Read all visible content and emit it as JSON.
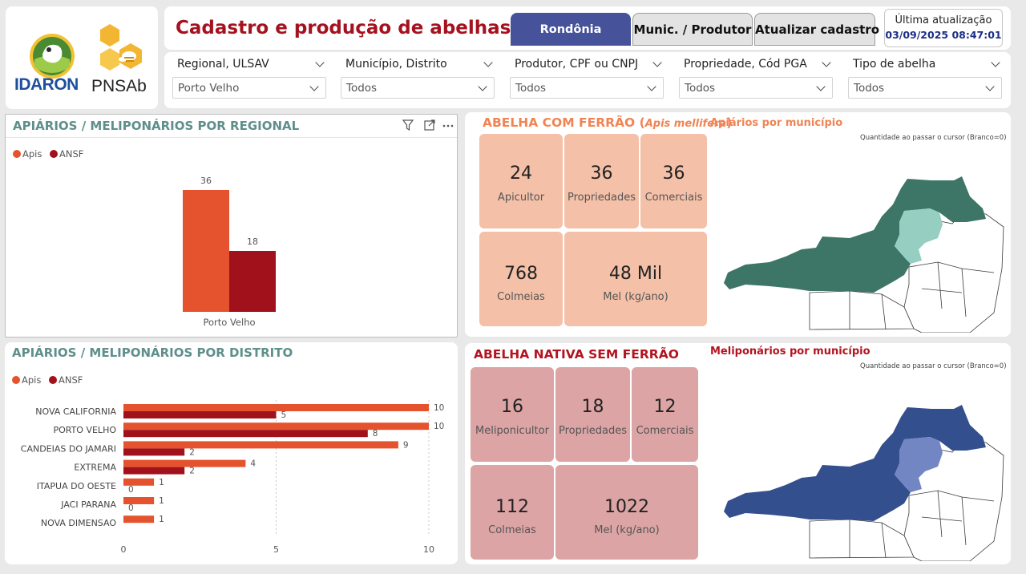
{
  "brand": {
    "logo_left": "IDARON",
    "logo_right": "PNSAb",
    "colors": {
      "idaron_blue": "#1d4f9c",
      "bee_yellow": "#f2b632",
      "green": "#4a8a32"
    }
  },
  "header": {
    "title": "Cadastro e produção de abelhas - RO",
    "tabs": [
      {
        "label": "Rondônia",
        "active": true
      },
      {
        "label": "Munic. / Produtor",
        "active": false
      },
      {
        "label": "Atualizar cadastro",
        "active": false
      }
    ],
    "update_label": "Última atualização",
    "update_value": "03/09/2025 08:47:01"
  },
  "filters": [
    {
      "label": "Regional, ULSAV",
      "value": "Porto Velho"
    },
    {
      "label": "Município, Distrito",
      "value": "Todos"
    },
    {
      "label": "Produtor, CPF ou CNPJ",
      "value": "Todos"
    },
    {
      "label": "Propriedade, Cód PGA",
      "value": "Todos"
    },
    {
      "label": "Tipo de abelha",
      "value": "Todos"
    }
  ],
  "regional_chart": {
    "title": "APIÁRIOS / MELIPONÁRIOS POR REGIONAL",
    "legend": [
      "Apis",
      "ANSF"
    ],
    "icons": [
      "filter-icon",
      "focus-mode-icon",
      "more-options-icon"
    ]
  },
  "distrito_chart": {
    "title": "APIÁRIOS / MELIPONÁRIOS POR DISTRITO",
    "legend": [
      "Apis",
      "ANSF"
    ]
  },
  "apis": {
    "header_main": "ABELHA COM FERRÃO (",
    "header_italic": "Apis mellifera",
    "header_close": ")",
    "kpis": [
      {
        "value": "24",
        "label": "Apicultor"
      },
      {
        "value": "36",
        "label": "Propriedades"
      },
      {
        "value": "36",
        "label": "Comerciais"
      },
      {
        "value": "768",
        "label": "Colmeias"
      },
      {
        "value": "48 Mil",
        "label": "Mel (kg/ano)"
      }
    ],
    "map_title": "Apiários por município",
    "map_note": "Quantidade ao passar o cursor (Branco=0)"
  },
  "ansf": {
    "header": "ABELHA NATIVA SEM FERRÃO",
    "kpis": [
      {
        "value": "16",
        "label": "Meliponicultor"
      },
      {
        "value": "18",
        "label": "Propriedades"
      },
      {
        "value": "12",
        "label": "Comerciais"
      },
      {
        "value": "112",
        "label": "Colmeias"
      },
      {
        "value": "1022",
        "label": "Mel (kg/ano)"
      }
    ],
    "map_title": "Meliponários por município",
    "map_note": "Quantidade ao passar o cursor (Branco=0)"
  },
  "colors": {
    "apis": "#e4532e",
    "ansf": "#a1111b",
    "apis_header": "#f08455",
    "apis_tile": "#f4c0a8",
    "ansf_header": "#b4141f",
    "ansf_tile": "#dca4a4",
    "apis_map_dark": "#3d7566",
    "apis_map_light": "#96cfc2",
    "ansf_map_dark": "#344f8e",
    "ansf_map_light": "#7386c4"
  },
  "chart_data": [
    {
      "type": "bar",
      "orientation": "vertical",
      "categories": [
        "Porto Velho"
      ],
      "series": [
        {
          "name": "Apis",
          "values": [
            36
          ]
        },
        {
          "name": "ANSF",
          "values": [
            18
          ]
        }
      ],
      "data_labels": true,
      "legend": "top-left",
      "grid": false
    },
    {
      "type": "bar",
      "orientation": "horizontal",
      "categories": [
        "NOVA CALIFORNIA",
        "PORTO VELHO",
        "CANDEIAS DO JAMARI",
        "EXTREMA",
        "ITAPUA DO OESTE",
        "JACI PARANA",
        "NOVA DIMENSAO"
      ],
      "series": [
        {
          "name": "Apis",
          "values": [
            10,
            10,
            9,
            4,
            1,
            1,
            1
          ]
        },
        {
          "name": "ANSF",
          "values": [
            5,
            8,
            2,
            2,
            0,
            0,
            null
          ]
        }
      ],
      "xticks": [
        0,
        5,
        10
      ],
      "xlim": [
        0,
        10
      ],
      "data_labels": true,
      "legend": "top-left",
      "grid": true
    }
  ]
}
